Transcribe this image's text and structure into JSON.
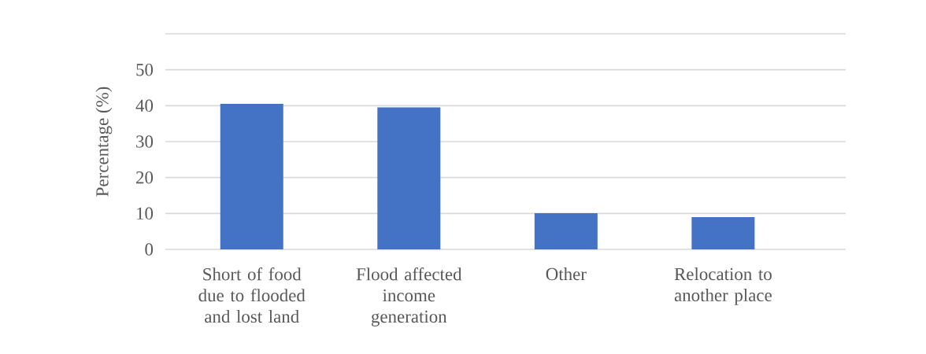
{
  "chart_data": {
    "type": "bar",
    "categories": [
      "Short of food due to flooded and lost land",
      "Flood affected income generation",
      "Other",
      "Relocation to another place"
    ],
    "values": [
      40.5,
      39.5,
      10.1,
      9.0
    ],
    "color": "#4472c4",
    "ylabel": "Percentage (%)",
    "ylim": [
      0,
      60
    ],
    "yticks": [
      0,
      10,
      20,
      30,
      40,
      50,
      {
        "value": 60,
        "label": null
      }
    ],
    "grid": "y"
  }
}
